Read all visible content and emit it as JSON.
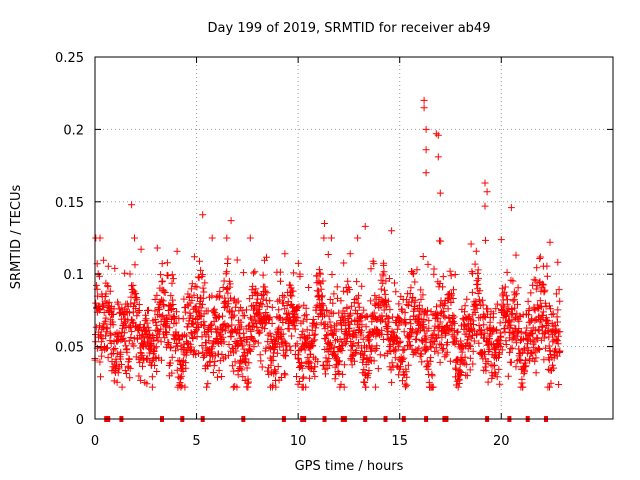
{
  "chart_data": {
    "type": "scatter",
    "title": "Day 199 of 2019, SRMTID for receiver ab49",
    "xlabel": "GPS time / hours",
    "ylabel": "SRMTID / TECUs",
    "xlim": [
      0,
      25.5
    ],
    "ylim": [
      0,
      0.25
    ],
    "xticks": [
      0,
      5,
      10,
      15,
      20
    ],
    "xtick_labels": [
      "0",
      "5",
      "10",
      "15",
      "20"
    ],
    "yticks": [
      0,
      0.05,
      0.1,
      0.15,
      0.2,
      0.25
    ],
    "ytick_labels": [
      "0",
      "0.05",
      "0.1",
      "0.15",
      "0.2",
      "0.25"
    ],
    "grid": true,
    "marker": "plus",
    "marker_color": "#ff0000",
    "data_range_hours": [
      0,
      22.9
    ],
    "baseline_level": 0.06,
    "baseline_spread": 0.02,
    "peaks": [
      {
        "x": 1.8,
        "y": 0.148
      },
      {
        "x": 5.3,
        "y": 0.141
      },
      {
        "x": 6.7,
        "y": 0.137
      },
      {
        "x": 11.3,
        "y": 0.135
      },
      {
        "x": 13.3,
        "y": 0.133
      },
      {
        "x": 14.6,
        "y": 0.13
      },
      {
        "x": 16.2,
        "y": 0.22
      },
      {
        "x": 16.2,
        "y": 0.215
      },
      {
        "x": 16.3,
        "y": 0.2
      },
      {
        "x": 16.3,
        "y": 0.186
      },
      {
        "x": 16.3,
        "y": 0.17
      },
      {
        "x": 16.8,
        "y": 0.197
      },
      {
        "x": 16.9,
        "y": 0.196
      },
      {
        "x": 16.9,
        "y": 0.181
      },
      {
        "x": 17.0,
        "y": 0.156
      },
      {
        "x": 19.2,
        "y": 0.163
      },
      {
        "x": 19.3,
        "y": 0.157
      },
      {
        "x": 19.2,
        "y": 0.147
      },
      {
        "x": 20.5,
        "y": 0.146
      },
      {
        "x": 22.4,
        "y": 0.122
      }
    ],
    "zero_markers_x": [
      0.55,
      0.65,
      1.3,
      3.3,
      4.3,
      5.3,
      7.3,
      9.3,
      10.2,
      10.3,
      11.3,
      12.2,
      12.3,
      13.3,
      14.3,
      15.2,
      16.3,
      17.2,
      17.3,
      19.3,
      20.4,
      21.3,
      22.2
    ]
  }
}
